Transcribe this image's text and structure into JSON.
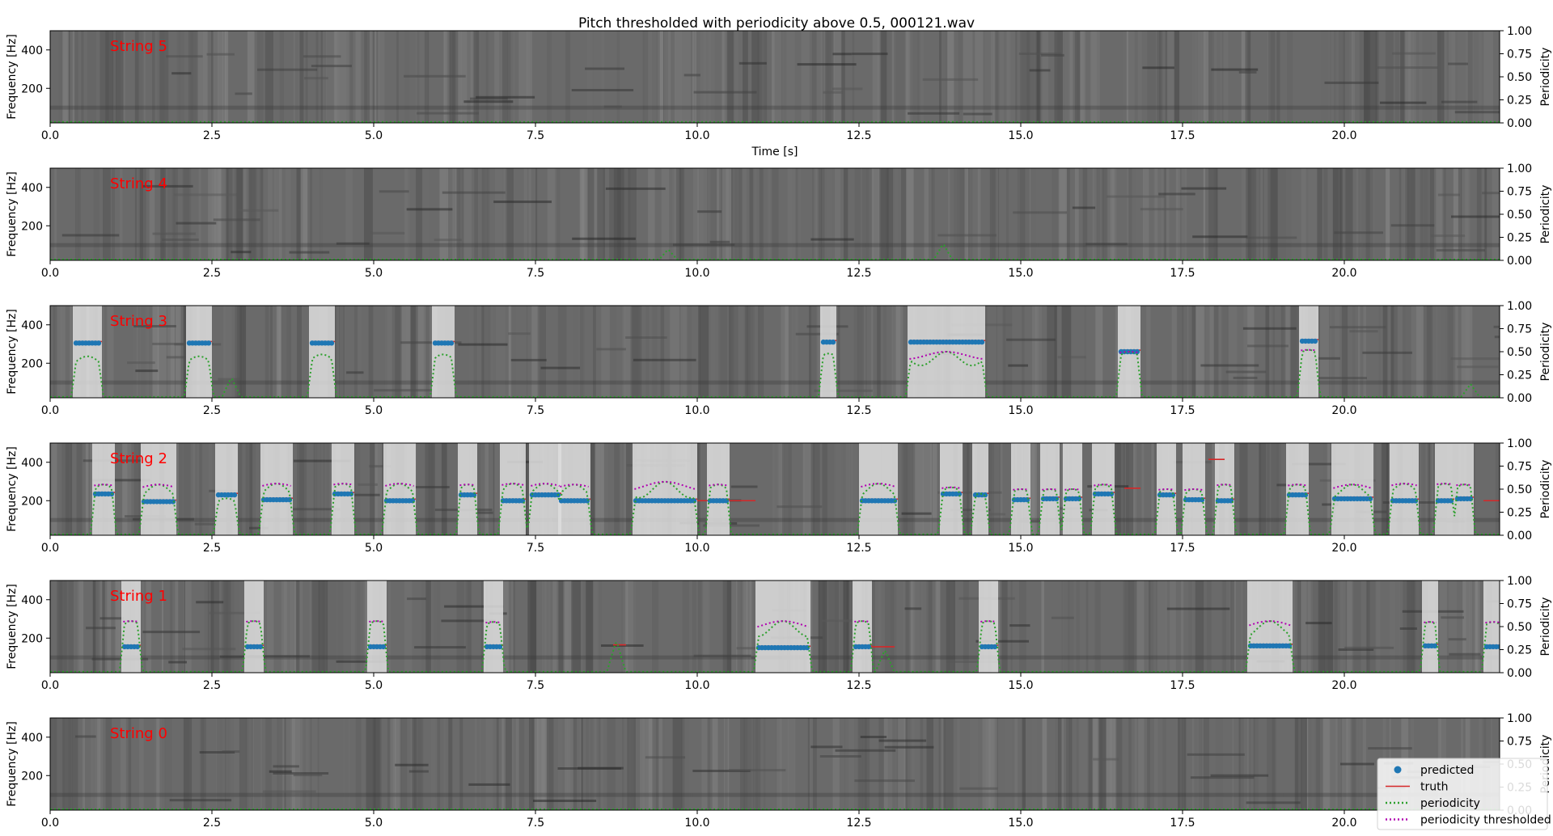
{
  "chart_data": {
    "type": "line",
    "title": "Pitch thresholded with periodicity above 0.5, 000121.wav",
    "xlabel": "Time [s]",
    "ylabel": "Frequency [Hz]",
    "y2label": "Periodicity",
    "xlim": [
      0,
      22.4
    ],
    "ylim": [
      20,
      500
    ],
    "y2lim": [
      0,
      1
    ],
    "xticks": [
      "0.0",
      "2.5",
      "5.0",
      "7.5",
      "10.0",
      "12.5",
      "15.0",
      "17.5",
      "20.0"
    ],
    "xtick_values": [
      0,
      2.5,
      5,
      7.5,
      10,
      12.5,
      15,
      17.5,
      20
    ],
    "yticks": [
      "200",
      "400"
    ],
    "ytick_values": [
      200,
      400
    ],
    "y2ticks": [
      "0.00",
      "0.25",
      "0.50",
      "0.75",
      "1.00"
    ],
    "y2tick_values": [
      0,
      0.25,
      0.5,
      0.75,
      1
    ],
    "legend": {
      "placement": "lower-right",
      "entries": [
        "predicted",
        "truth",
        "periodicity",
        "periodicity thresholded"
      ]
    },
    "colors": {
      "predicted": "#1f77b4",
      "truth": "#d62728",
      "periodicity": "#2ca02c",
      "periodicity_thresholded": "#b000b0",
      "string_label": "#ff0000"
    },
    "panels": [
      {
        "label": "String 5",
        "show_xlabel": true,
        "notes": [],
        "periodicity_bumps": []
      },
      {
        "label": "String 4",
        "show_xlabel": false,
        "notes": [],
        "periodicity_bumps": [
          [
            9.55,
            0.12
          ],
          [
            13.8,
            0.18
          ]
        ]
      },
      {
        "label": "String 3",
        "show_xlabel": false,
        "notes": [
          {
            "start": 0.4,
            "end": 0.75,
            "pitch": 305,
            "period": 0.45
          },
          {
            "start": 2.15,
            "end": 2.45,
            "pitch": 305,
            "period": 0.45
          },
          {
            "start": 4.05,
            "end": 4.35,
            "pitch": 305,
            "period": 0.47
          },
          {
            "start": 5.95,
            "end": 6.2,
            "pitch": 305,
            "period": 0.47
          },
          {
            "start": 11.95,
            "end": 12.1,
            "pitch": 310,
            "period": 0.48
          },
          {
            "start": 13.3,
            "end": 14.4,
            "pitch": 310,
            "period": 0.5
          },
          {
            "start": 16.55,
            "end": 16.8,
            "pitch": 260,
            "period": 0.5
          },
          {
            "start": 19.35,
            "end": 19.55,
            "pitch": 315,
            "period": 0.52
          }
        ],
        "periodicity_bumps": [
          [
            2.8,
            0.22
          ],
          [
            21.95,
            0.15
          ]
        ]
      },
      {
        "label": "String 2",
        "show_xlabel": false,
        "notes": [
          {
            "start": 0.7,
            "end": 0.95,
            "pitch": 235,
            "period": 0.55
          },
          {
            "start": 1.45,
            "end": 1.9,
            "pitch": 195,
            "period": 0.55
          },
          {
            "start": 2.6,
            "end": 2.85,
            "pitch": 230,
            "period": 0.4
          },
          {
            "start": 3.3,
            "end": 3.7,
            "pitch": 205,
            "period": 0.56
          },
          {
            "start": 4.4,
            "end": 4.65,
            "pitch": 235,
            "period": 0.56
          },
          {
            "start": 5.2,
            "end": 5.6,
            "pitch": 200,
            "period": 0.56
          },
          {
            "start": 6.35,
            "end": 6.55,
            "pitch": 230,
            "period": 0.55
          },
          {
            "start": 7.0,
            "end": 7.3,
            "pitch": 200,
            "period": 0.56
          },
          {
            "start": 7.45,
            "end": 7.85,
            "pitch": 230,
            "period": 0.56
          },
          {
            "start": 7.9,
            "end": 8.3,
            "pitch": 200,
            "period": 0.55
          },
          {
            "start": 9.05,
            "end": 9.95,
            "pitch": 200,
            "period": 0.58
          },
          {
            "start": 10.2,
            "end": 10.45,
            "pitch": 200,
            "period": 0.55
          },
          {
            "start": 12.55,
            "end": 13.05,
            "pitch": 200,
            "period": 0.56
          },
          {
            "start": 13.8,
            "end": 14.05,
            "pitch": 235,
            "period": 0.52
          },
          {
            "start": 14.3,
            "end": 14.45,
            "pitch": 230,
            "period": 0.45
          },
          {
            "start": 14.9,
            "end": 15.1,
            "pitch": 205,
            "period": 0.5
          },
          {
            "start": 15.35,
            "end": 15.55,
            "pitch": 210,
            "period": 0.5
          },
          {
            "start": 15.7,
            "end": 15.9,
            "pitch": 210,
            "period": 0.5
          },
          {
            "start": 16.15,
            "end": 16.4,
            "pitch": 235,
            "period": 0.55
          },
          {
            "start": 17.15,
            "end": 17.35,
            "pitch": 230,
            "period": 0.5
          },
          {
            "start": 17.55,
            "end": 17.8,
            "pitch": 205,
            "period": 0.5
          },
          {
            "start": 18.05,
            "end": 18.25,
            "pitch": 200,
            "period": 0.55
          },
          {
            "start": 19.15,
            "end": 19.4,
            "pitch": 230,
            "period": 0.55
          },
          {
            "start": 19.85,
            "end": 20.4,
            "pitch": 210,
            "period": 0.55
          },
          {
            "start": 20.75,
            "end": 21.1,
            "pitch": 200,
            "period": 0.56
          },
          {
            "start": 21.45,
            "end": 21.65,
            "pitch": 200,
            "period": 0.56
          },
          {
            "start": 21.75,
            "end": 21.95,
            "pitch": 210,
            "period": 0.55
          }
        ],
        "truth_only": [
          {
            "start": 16.6,
            "end": 16.85,
            "pitch": 265
          },
          {
            "start": 17.9,
            "end": 18.15,
            "pitch": 415
          },
          {
            "start": 10.0,
            "end": 10.9,
            "pitch": 200
          },
          {
            "start": 22.15,
            "end": 22.4,
            "pitch": 200
          }
        ],
        "periodicity_bumps": []
      },
      {
        "label": "String 1",
        "show_xlabel": false,
        "notes": [
          {
            "start": 1.15,
            "end": 1.35,
            "pitch": 155,
            "period": 0.56
          },
          {
            "start": 3.05,
            "end": 3.25,
            "pitch": 155,
            "period": 0.56
          },
          {
            "start": 4.95,
            "end": 5.15,
            "pitch": 155,
            "period": 0.56
          },
          {
            "start": 6.75,
            "end": 6.95,
            "pitch": 155,
            "period": 0.55
          },
          {
            "start": 10.95,
            "end": 11.7,
            "pitch": 150,
            "period": 0.56
          },
          {
            "start": 12.45,
            "end": 12.65,
            "pitch": 155,
            "period": 0.56
          },
          {
            "start": 14.4,
            "end": 14.6,
            "pitch": 155,
            "period": 0.56
          },
          {
            "start": 18.55,
            "end": 19.15,
            "pitch": 160,
            "period": 0.56
          },
          {
            "start": 21.25,
            "end": 21.4,
            "pitch": 160,
            "period": 0.55
          },
          {
            "start": 22.2,
            "end": 22.4,
            "pitch": 155,
            "period": 0.55
          }
        ],
        "truth_only": [
          {
            "start": 8.7,
            "end": 8.9,
            "pitch": 165
          },
          {
            "start": 12.6,
            "end": 13.05,
            "pitch": 155
          }
        ],
        "periodicity_bumps": [
          [
            8.75,
            0.35
          ],
          [
            12.9,
            0.25
          ]
        ]
      },
      {
        "label": "String 0",
        "show_xlabel": false,
        "notes": [],
        "periodicity_bumps": []
      }
    ]
  }
}
